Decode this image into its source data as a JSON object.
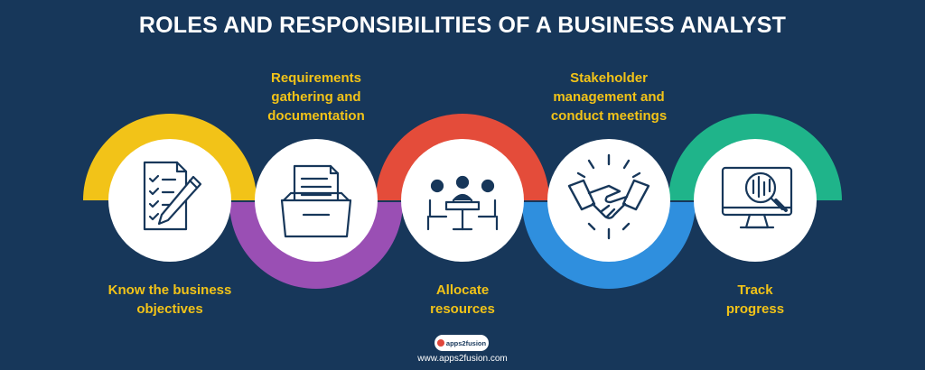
{
  "title": "ROLES AND RESPONSIBILITIES OF A BUSINESS ANALYST",
  "steps": [
    {
      "label": "Know the business\nobjectives",
      "color": "#f2c318",
      "icon": "checklist-pen-icon"
    },
    {
      "label": "Requirements\ngathering and\ndocumentation",
      "color": "#9a4fb4",
      "icon": "document-folder-icon"
    },
    {
      "label": "Allocate\nresources",
      "color": "#e44c3a",
      "icon": "team-meeting-icon"
    },
    {
      "label": "Stakeholder\nmanagement and\nconduct meetings",
      "color": "#2f8fde",
      "icon": "handshake-icon"
    },
    {
      "label": "Track\nprogress",
      "color": "#1fb48a",
      "icon": "monitor-analytics-icon"
    }
  ],
  "footer": {
    "logo_text": "apps2fusion",
    "website": "www.apps2fusion.com"
  }
}
